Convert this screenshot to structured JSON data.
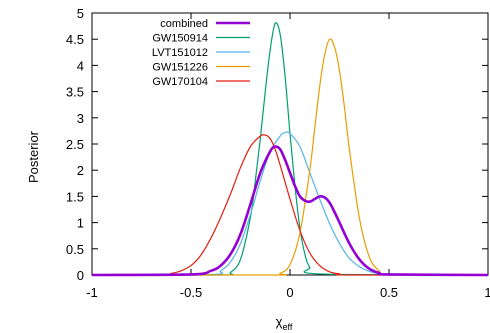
{
  "chart_data": {
    "type": "line",
    "title": "",
    "xlabel": "χ",
    "xlabel_sub": "eff",
    "ylabel": "Posterior",
    "xlim": [
      -1,
      1
    ],
    "ylim": [
      0,
      5
    ],
    "x_ticks": [
      -1,
      -0.5,
      0,
      0.5,
      1
    ],
    "x_tick_labels": [
      "-1",
      "-0.5",
      "0",
      "0.5",
      "1"
    ],
    "y_ticks": [
      0,
      0.5,
      1,
      1.5,
      2,
      2.5,
      3,
      3.5,
      4,
      4.5,
      5
    ],
    "y_tick_labels": [
      "0",
      "0.5",
      "1",
      "1.5",
      "2",
      "2.5",
      "3",
      "3.5",
      "4",
      "4.5",
      "5"
    ],
    "grid": false,
    "legend_position": "top-left",
    "series": [
      {
        "name": "combined",
        "color": "#9400d3",
        "bold": true,
        "x": [
          -1,
          -0.5,
          -0.4,
          -0.35,
          -0.3,
          -0.25,
          -0.2,
          -0.15,
          -0.1,
          -0.075,
          -0.05,
          -0.025,
          0,
          0.025,
          0.05,
          0.075,
          0.1,
          0.125,
          0.15,
          0.175,
          0.2,
          0.225,
          0.25,
          0.3,
          0.35,
          0.4,
          0.45,
          0.5,
          1
        ],
        "y": [
          0,
          0.01,
          0.08,
          0.18,
          0.4,
          0.78,
          1.35,
          1.95,
          2.36,
          2.45,
          2.4,
          2.2,
          1.95,
          1.7,
          1.5,
          1.42,
          1.4,
          1.45,
          1.5,
          1.48,
          1.38,
          1.2,
          1.0,
          0.6,
          0.3,
          0.12,
          0.04,
          0.01,
          0
        ]
      },
      {
        "name": "GW150914",
        "color": "#009e73",
        "bold": false,
        "x": [
          -1,
          -0.35,
          -0.3,
          -0.25,
          -0.2,
          -0.175,
          -0.15,
          -0.125,
          -0.1,
          -0.075,
          -0.05,
          -0.025,
          0,
          0.025,
          0.05,
          0.075,
          0.1,
          0.15,
          1
        ],
        "y": [
          0,
          0,
          0.05,
          0.3,
          1.1,
          1.8,
          2.6,
          3.5,
          4.3,
          4.8,
          4.6,
          3.8,
          2.7,
          1.7,
          0.9,
          0.4,
          0.15,
          0.02,
          0
        ]
      },
      {
        "name": "LVT151012",
        "color": "#56b4e9",
        "bold": false,
        "x": [
          -1,
          -0.4,
          -0.35,
          -0.3,
          -0.25,
          -0.2,
          -0.15,
          -0.1,
          -0.05,
          -0.025,
          0,
          0.05,
          0.1,
          0.15,
          0.2,
          0.25,
          0.3,
          0.35,
          0.4,
          0.45,
          0.5,
          1
        ],
        "y": [
          0,
          0.01,
          0.08,
          0.25,
          0.6,
          1.15,
          1.8,
          2.35,
          2.65,
          2.72,
          2.7,
          2.45,
          1.95,
          1.45,
          0.98,
          0.6,
          0.32,
          0.16,
          0.07,
          0.02,
          0,
          0
        ]
      },
      {
        "name": "GW151226",
        "color": "#e69f00",
        "bold": false,
        "x": [
          -1,
          -0.1,
          -0.05,
          0,
          0.05,
          0.1,
          0.125,
          0.15,
          0.175,
          0.2,
          0.225,
          0.25,
          0.275,
          0.3,
          0.35,
          0.4,
          0.45,
          0.5,
          1
        ],
        "y": [
          0,
          0,
          0.03,
          0.2,
          0.8,
          2.0,
          2.8,
          3.6,
          4.2,
          4.5,
          4.35,
          3.9,
          3.2,
          2.4,
          1.1,
          0.35,
          0.08,
          0.01,
          0
        ]
      },
      {
        "name": "GW170104",
        "color": "#e51e10",
        "bold": false,
        "x": [
          -1,
          -0.65,
          -0.6,
          -0.55,
          -0.5,
          -0.45,
          -0.4,
          -0.35,
          -0.3,
          -0.25,
          -0.2,
          -0.15,
          -0.125,
          -0.1,
          -0.075,
          -0.05,
          0,
          0.05,
          0.1,
          0.15,
          0.2,
          0.25,
          0.3,
          1
        ],
        "y": [
          0,
          0.01,
          0.03,
          0.08,
          0.18,
          0.38,
          0.7,
          1.1,
          1.55,
          2.05,
          2.45,
          2.65,
          2.67,
          2.6,
          2.4,
          2.1,
          1.45,
          0.85,
          0.42,
          0.18,
          0.06,
          0.02,
          0,
          0
        ]
      }
    ]
  }
}
